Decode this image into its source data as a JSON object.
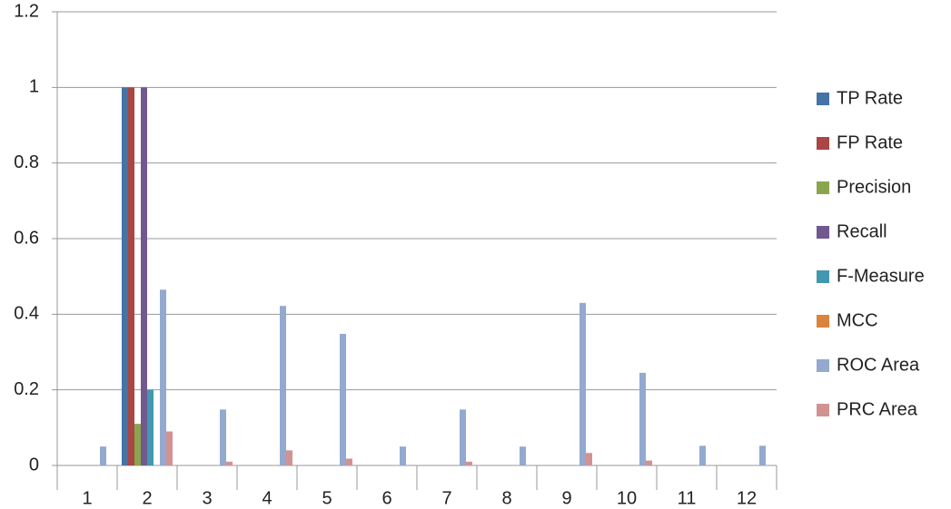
{
  "chart_data": {
    "type": "bar",
    "categories": [
      "1",
      "2",
      "3",
      "4",
      "5",
      "6",
      "7",
      "8",
      "9",
      "10",
      "11",
      "12"
    ],
    "series": [
      {
        "name": "TP Rate",
        "color": "#4572a7",
        "values": [
          0,
          1,
          0,
          0,
          0,
          0,
          0,
          0,
          0,
          0,
          0,
          0
        ]
      },
      {
        "name": "FP Rate",
        "color": "#aa4643",
        "values": [
          0,
          1,
          0,
          0,
          0,
          0,
          0,
          0,
          0,
          0,
          0,
          0
        ]
      },
      {
        "name": "Precision",
        "color": "#89a54e",
        "values": [
          0,
          0.11,
          0,
          0,
          0,
          0,
          0,
          0,
          0,
          0,
          0,
          0
        ]
      },
      {
        "name": "Recall",
        "color": "#71588f",
        "values": [
          0,
          1,
          0,
          0,
          0,
          0,
          0,
          0,
          0,
          0,
          0,
          0
        ]
      },
      {
        "name": "F-Measure",
        "color": "#4198af",
        "values": [
          0,
          0.2,
          0,
          0,
          0,
          0,
          0,
          0,
          0,
          0,
          0,
          0
        ]
      },
      {
        "name": "MCC",
        "color": "#db843d",
        "values": [
          0,
          0,
          0,
          0,
          0,
          0,
          0,
          0,
          0,
          0,
          0,
          0
        ]
      },
      {
        "name": "ROC Area",
        "color": "#93a9cf",
        "values": [
          0.05,
          0.465,
          0.148,
          0.422,
          0.348,
          0.05,
          0.148,
          0.05,
          0.43,
          0.245,
          0.052,
          0.052
        ]
      },
      {
        "name": "PRC Area",
        "color": "#d19392",
        "values": [
          0,
          0.09,
          0.01,
          0.04,
          0.018,
          0,
          0.01,
          0,
          0.033,
          0.013,
          0,
          0
        ]
      }
    ],
    "ylim": [
      0,
      1.2
    ],
    "yticks": [
      0,
      0.2,
      0.4,
      0.6,
      0.8,
      1,
      1.2
    ],
    "grid": true,
    "legend": "right"
  }
}
